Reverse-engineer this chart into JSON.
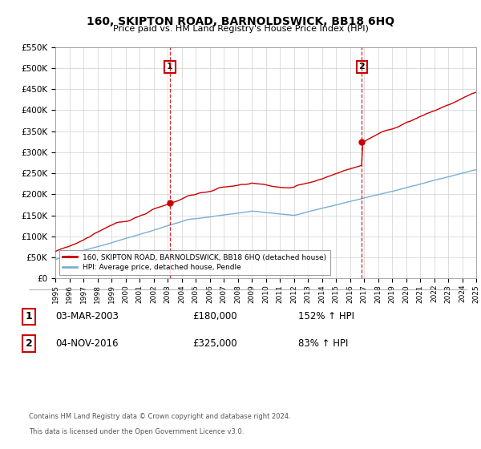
{
  "title": "160, SKIPTON ROAD, BARNOLDSWICK, BB18 6HQ",
  "subtitle": "Price paid vs. HM Land Registry's House Price Index (HPI)",
  "legend_line1": "160, SKIPTON ROAD, BARNOLDSWICK, BB18 6HQ (detached house)",
  "legend_line2": "HPI: Average price, detached house, Pendle",
  "sale1_label": "1",
  "sale1_date": "03-MAR-2003",
  "sale1_price": "£180,000",
  "sale1_hpi": "152% ↑ HPI",
  "sale1_year": 2003.17,
  "sale1_value": 180000,
  "sale2_label": "2",
  "sale2_date": "04-NOV-2016",
  "sale2_price": "£325,000",
  "sale2_hpi": "83% ↑ HPI",
  "sale2_year": 2016.84,
  "sale2_value": 325000,
  "red_color": "#cc0000",
  "blue_color": "#7aaed4",
  "footer1": "Contains HM Land Registry data © Crown copyright and database right 2024.",
  "footer2": "This data is licensed under the Open Government Licence v3.0.",
  "ylim": [
    0,
    550000
  ],
  "xlim": [
    1995,
    2025
  ]
}
